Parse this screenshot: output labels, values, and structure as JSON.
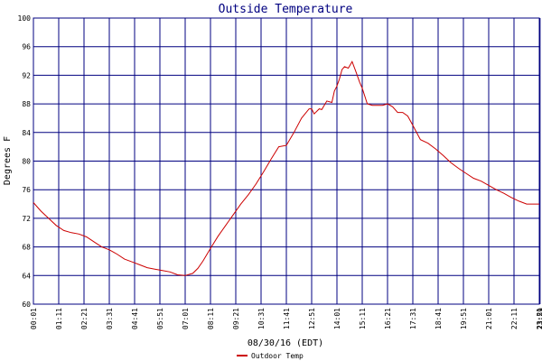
{
  "chart_data": {
    "type": "line",
    "title": "Outside Temperature",
    "xlabel": "08/30/16 (EDT)",
    "ylabel": "Degrees F",
    "ylim": [
      60,
      100
    ],
    "yticks": [
      60,
      64,
      68,
      72,
      76,
      80,
      84,
      88,
      92,
      96,
      100
    ],
    "xlim": [
      0,
      20
    ],
    "xticks": [
      "00:01",
      "01:11",
      "02:21",
      "03:31",
      "04:41",
      "05:51",
      "07:01",
      "08:11",
      "09:21",
      "10:31",
      "11:41",
      "12:51",
      "14:01",
      "15:11",
      "16:21",
      "17:31",
      "18:41",
      "19:51",
      "21:01",
      "22:11",
      "23:21",
      "23:59"
    ],
    "grid": true,
    "legend_position": "bottom-center",
    "colors": {
      "series": "#cc0000",
      "grid": "#000080",
      "title": "#000080"
    },
    "series": [
      {
        "name": "Outdoor Temp",
        "x": [
          0.0,
          0.3,
          0.6,
          0.9,
          1.2,
          1.5,
          1.8,
          2.1,
          2.4,
          2.7,
          3.0,
          3.3,
          3.6,
          3.9,
          4.2,
          4.5,
          4.8,
          5.1,
          5.4,
          5.7,
          6.0,
          6.3,
          6.5,
          6.7,
          7.0,
          7.3,
          7.6,
          7.9,
          8.2,
          8.5,
          8.8,
          9.1,
          9.4,
          9.7,
          10.0,
          10.3,
          10.6,
          10.9,
          11.0,
          11.1,
          11.3,
          11.4,
          11.6,
          11.8,
          11.9,
          12.0,
          12.1,
          12.2,
          12.3,
          12.45,
          12.6,
          12.75,
          12.9,
          13.0,
          13.2,
          13.4,
          13.6,
          13.8,
          14.0,
          14.2,
          14.4,
          14.6,
          14.8,
          15.0,
          15.3,
          15.6,
          15.9,
          16.2,
          16.5,
          16.8,
          17.1,
          17.4,
          17.7,
          18.0,
          18.3,
          18.6,
          18.9,
          19.2,
          19.5,
          19.8,
          20.0
        ],
        "values": [
          74.2,
          73.0,
          72.0,
          71.0,
          70.3,
          70.0,
          69.8,
          69.4,
          68.7,
          68.0,
          67.6,
          67.0,
          66.3,
          65.9,
          65.5,
          65.1,
          64.9,
          64.7,
          64.5,
          64.1,
          64.0,
          64.3,
          65.0,
          66.0,
          67.8,
          69.5,
          71.0,
          72.5,
          74.0,
          75.3,
          76.8,
          78.5,
          80.3,
          82.0,
          82.2,
          84.0,
          86.0,
          87.3,
          87.3,
          86.6,
          87.3,
          87.2,
          88.4,
          88.2,
          89.8,
          90.5,
          91.5,
          92.8,
          93.2,
          93.0,
          93.9,
          92.5,
          91.0,
          90.2,
          88.0,
          87.8,
          87.8,
          87.8,
          88.0,
          87.6,
          86.8,
          86.8,
          86.3,
          85.0,
          83.0,
          82.5,
          81.7,
          80.8,
          79.8,
          79.0,
          78.3,
          77.6,
          77.2,
          76.6,
          76.0,
          75.5,
          74.9,
          74.4,
          74.0,
          74.0,
          74.0
        ]
      }
    ]
  }
}
